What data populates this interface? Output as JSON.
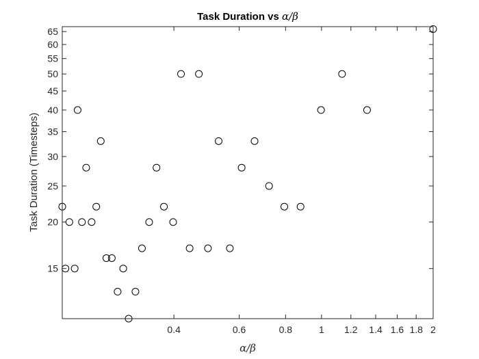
{
  "chart_data": {
    "type": "scatter",
    "title": "Task Duration vs ",
    "title_math": "α/β",
    "xlabel": "α/β",
    "ylabel": "Task Duration (Timesteps)",
    "x_scale": "log",
    "y_scale": "log",
    "xlim": [
      0.2,
      2.0
    ],
    "ylim": [
      11,
      67
    ],
    "x_ticks": [
      0.4,
      0.6,
      0.8,
      1,
      1.2,
      1.4,
      1.6,
      1.8,
      2
    ],
    "x_tick_labels": [
      "0.4",
      "0.6",
      "0.8",
      "1",
      "1.2",
      "1.4",
      "1.6",
      "1.8",
      "2"
    ],
    "y_ticks": [
      15,
      20,
      25,
      30,
      35,
      40,
      45,
      50,
      55,
      60,
      65
    ],
    "y_tick_labels": [
      "15",
      "20",
      "25",
      "30",
      "35",
      "40",
      "45",
      "50",
      "55",
      "60",
      "65"
    ],
    "grid": false,
    "marker": "open-circle",
    "marker_color": "#000000",
    "points": [
      {
        "x": 0.2,
        "y": 22
      },
      {
        "x": 0.204,
        "y": 15
      },
      {
        "x": 0.209,
        "y": 20
      },
      {
        "x": 0.216,
        "y": 15
      },
      {
        "x": 0.22,
        "y": 40
      },
      {
        "x": 0.226,
        "y": 20
      },
      {
        "x": 0.232,
        "y": 28
      },
      {
        "x": 0.24,
        "y": 20
      },
      {
        "x": 0.247,
        "y": 22
      },
      {
        "x": 0.254,
        "y": 33
      },
      {
        "x": 0.263,
        "y": 16
      },
      {
        "x": 0.272,
        "y": 16
      },
      {
        "x": 0.282,
        "y": 13
      },
      {
        "x": 0.292,
        "y": 15
      },
      {
        "x": 0.302,
        "y": 11
      },
      {
        "x": 0.315,
        "y": 13
      },
      {
        "x": 0.328,
        "y": 17
      },
      {
        "x": 0.343,
        "y": 20
      },
      {
        "x": 0.359,
        "y": 28
      },
      {
        "x": 0.376,
        "y": 22
      },
      {
        "x": 0.398,
        "y": 20
      },
      {
        "x": 0.418,
        "y": 50
      },
      {
        "x": 0.441,
        "y": 17
      },
      {
        "x": 0.467,
        "y": 50
      },
      {
        "x": 0.494,
        "y": 17
      },
      {
        "x": 0.528,
        "y": 33
      },
      {
        "x": 0.566,
        "y": 17
      },
      {
        "x": 0.609,
        "y": 28
      },
      {
        "x": 0.66,
        "y": 33
      },
      {
        "x": 0.722,
        "y": 25
      },
      {
        "x": 0.794,
        "y": 22
      },
      {
        "x": 0.878,
        "y": 22
      },
      {
        "x": 0.997,
        "y": 40
      },
      {
        "x": 1.136,
        "y": 50
      },
      {
        "x": 1.327,
        "y": 40
      },
      {
        "x": 2.0,
        "y": 66
      }
    ]
  }
}
